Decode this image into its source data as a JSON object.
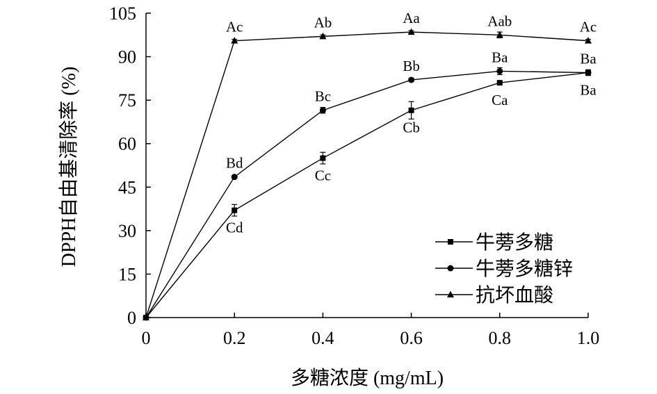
{
  "chart_data": {
    "type": "line",
    "xlabel": "多糖浓度 (mg/mL)",
    "ylabel": "DPPH自由基清除率 (%)",
    "xlim": [
      0,
      1.0
    ],
    "ylim": [
      0,
      105
    ],
    "x_ticks": [
      "0",
      "0.2",
      "0.4",
      "0.6",
      "0.8",
      "1.0"
    ],
    "x_tick_values": [
      0,
      0.2,
      0.4,
      0.6,
      0.8,
      1.0
    ],
    "y_ticks": [
      "0",
      "15",
      "30",
      "45",
      "60",
      "75",
      "90",
      "105"
    ],
    "y_tick_values": [
      0,
      15,
      30,
      45,
      60,
      75,
      90,
      105
    ],
    "grid": false,
    "legend_position": "bottom-right",
    "x": [
      0,
      0.2,
      0.4,
      0.6,
      0.8,
      1.0
    ],
    "series": [
      {
        "name": "牛蒡多糖",
        "marker": "square",
        "values": [
          0,
          37,
          55,
          71.5,
          81,
          84.5
        ],
        "errors": [
          0,
          2,
          2,
          3,
          0.5,
          1
        ],
        "labels": [
          "",
          "Cd",
          "Cc",
          "Cb",
          "Ca",
          "Ba"
        ],
        "label_side": [
          "",
          "below",
          "below",
          "below",
          "below",
          "below"
        ]
      },
      {
        "name": "牛蒡多糖锌",
        "marker": "circle",
        "values": [
          0,
          48.5,
          71.5,
          82,
          85,
          84.5
        ],
        "errors": [
          0,
          0.5,
          1,
          0.5,
          1.2,
          0.5
        ],
        "labels": [
          "",
          "Bd",
          "Bc",
          "Bb",
          "Ba",
          "Ba"
        ],
        "label_side": [
          "",
          "above",
          "above",
          "above",
          "above",
          "above"
        ]
      },
      {
        "name": "抗坏血酸",
        "marker": "triangle",
        "values": [
          0,
          95.5,
          97,
          98.5,
          97.5,
          95.5
        ],
        "errors": [
          0,
          0.5,
          0.5,
          0.5,
          1,
          0.5
        ],
        "labels": [
          "",
          "Ac",
          "Ab",
          "Aa",
          "Aab",
          "Ac"
        ],
        "label_side": [
          "",
          "above",
          "above",
          "above",
          "above",
          "above"
        ]
      }
    ]
  }
}
